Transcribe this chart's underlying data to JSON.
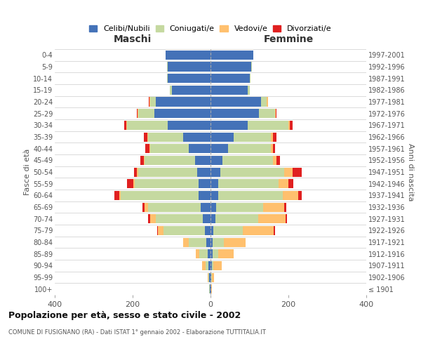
{
  "age_groups": [
    "100+",
    "95-99",
    "90-94",
    "85-89",
    "80-84",
    "75-79",
    "70-74",
    "65-69",
    "60-64",
    "55-59",
    "50-54",
    "45-49",
    "40-44",
    "35-39",
    "30-34",
    "25-29",
    "20-24",
    "15-19",
    "10-14",
    "5-9",
    "0-4"
  ],
  "birth_years": [
    "≤ 1901",
    "1902-1906",
    "1907-1911",
    "1912-1916",
    "1917-1921",
    "1922-1926",
    "1927-1931",
    "1932-1936",
    "1937-1941",
    "1942-1946",
    "1947-1951",
    "1952-1956",
    "1957-1961",
    "1962-1966",
    "1967-1971",
    "1972-1976",
    "1977-1981",
    "1982-1986",
    "1987-1991",
    "1992-1996",
    "1997-2001"
  ],
  "maschi": {
    "celibi": [
      2,
      3,
      5,
      8,
      10,
      15,
      20,
      25,
      30,
      30,
      35,
      40,
      55,
      70,
      110,
      145,
      140,
      100,
      110,
      110,
      115
    ],
    "coniugati": [
      1,
      3,
      8,
      20,
      45,
      105,
      120,
      135,
      200,
      165,
      150,
      130,
      100,
      90,
      105,
      40,
      15,
      5,
      2,
      1,
      0
    ],
    "vedovi": [
      0,
      2,
      8,
      10,
      15,
      15,
      15,
      10,
      5,
      4,
      4,
      2,
      2,
      2,
      2,
      2,
      1,
      0,
      0,
      0,
      0
    ],
    "divorziati": [
      0,
      0,
      0,
      0,
      0,
      2,
      5,
      5,
      12,
      15,
      8,
      8,
      10,
      10,
      5,
      3,
      2,
      0,
      0,
      0,
      0
    ]
  },
  "femmine": {
    "nubili": [
      2,
      2,
      3,
      5,
      5,
      8,
      12,
      15,
      20,
      20,
      25,
      30,
      45,
      60,
      95,
      125,
      130,
      95,
      100,
      105,
      110
    ],
    "coniugate": [
      0,
      2,
      5,
      15,
      30,
      75,
      110,
      120,
      165,
      155,
      165,
      130,
      110,
      95,
      105,
      40,
      15,
      5,
      2,
      1,
      0
    ],
    "vedove": [
      1,
      5,
      20,
      40,
      55,
      80,
      70,
      55,
      40,
      25,
      20,
      10,
      5,
      5,
      3,
      3,
      2,
      0,
      0,
      0,
      0
    ],
    "divorziate": [
      0,
      0,
      0,
      0,
      0,
      2,
      5,
      5,
      10,
      12,
      25,
      8,
      5,
      10,
      8,
      2,
      1,
      0,
      0,
      0,
      0
    ]
  },
  "colors": {
    "celibi": "#4472b8",
    "coniugati": "#c5d9a0",
    "vedovi": "#ffc06e",
    "divorziati": "#e02020"
  },
  "xlim": 400,
  "title": "Popolazione per età, sesso e stato civile - 2002",
  "subtitle": "COMUNE DI FUSIGNANO (RA) - Dati ISTAT 1° gennaio 2002 - Elaborazione TUTTITALIA.IT",
  "xlabel_maschi": "Maschi",
  "xlabel_femmine": "Femmine",
  "ylabel_left": "Fasce di età",
  "ylabel_right": "Anni di nascita",
  "legend_labels": [
    "Celibi/Nubili",
    "Coniugati/e",
    "Vedovi/e",
    "Divorziati/e"
  ],
  "background_color": "#ffffff",
  "grid_color": "#cccccc"
}
